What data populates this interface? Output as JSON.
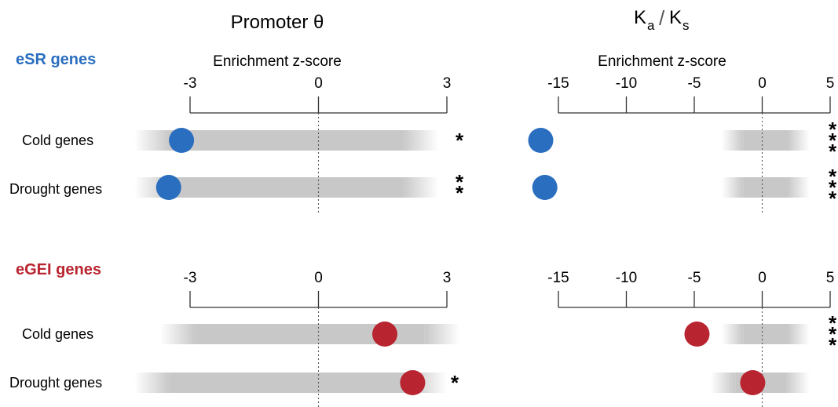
{
  "figure": {
    "col_titles": {
      "promoter": "Promoter θ",
      "kaks_main_a": "K",
      "kaks_sub_a": "a",
      "kaks_slash": "/",
      "kaks_main_s": "K",
      "kaks_sub_s": "s"
    },
    "groups": [
      {
        "label": "eSR genes",
        "color": "#2a6ebf"
      },
      {
        "label": "eGEI genes",
        "color": "#b8242f"
      }
    ],
    "row_labels": [
      "Cold genes",
      "Drought genes"
    ],
    "axis_label": "Enrichment z-score",
    "bg_bar_color": "#c8c8c8"
  },
  "chart_data": [
    {
      "type": "scatter",
      "panel": "eSR genes — Promoter θ",
      "xlabel": "Enrichment z-score",
      "xlim": [
        -3,
        3
      ],
      "ticks": [
        -3,
        0,
        3
      ],
      "categories": [
        "Cold genes",
        "Drought genes"
      ],
      "values": [
        -3.2,
        -3.5
      ],
      "null_range": [
        [
          -4.3,
          2.8
        ],
        [
          -4.3,
          2.8
        ]
      ],
      "significance": [
        "*",
        "**"
      ]
    },
    {
      "type": "scatter",
      "panel": "eSR genes — Ka/Ks",
      "xlabel": "Enrichment z-score",
      "xlim": [
        -15,
        5
      ],
      "ticks": [
        -15,
        -10,
        -5,
        0,
        5
      ],
      "categories": [
        "Cold genes",
        "Drought genes"
      ],
      "values": [
        -16.3,
        -16.0
      ],
      "null_range": [
        [
          -3,
          3.5
        ],
        [
          -3,
          3.5
        ]
      ],
      "significance": [
        "***",
        "***"
      ]
    },
    {
      "type": "scatter",
      "panel": "eGEI genes — Promoter θ",
      "xlabel": "Enrichment z-score",
      "xlim": [
        -3,
        3
      ],
      "ticks": [
        -3,
        0,
        3
      ],
      "categories": [
        "Cold genes",
        "Drought genes"
      ],
      "values": [
        1.55,
        2.2
      ],
      "null_range": [
        [
          -3.7,
          3.3
        ],
        [
          -4.3,
          3.0
        ]
      ],
      "significance": [
        "",
        "*"
      ]
    },
    {
      "type": "scatter",
      "panel": "eGEI genes — Ka/Ks",
      "xlabel": "Enrichment z-score",
      "xlim": [
        -15,
        5
      ],
      "ticks": [
        -15,
        -10,
        -5,
        0,
        5
      ],
      "categories": [
        "Cold genes",
        "Drought genes"
      ],
      "values": [
        -4.8,
        -0.7
      ],
      "null_range": [
        [
          -3,
          3.5
        ],
        [
          -3.8,
          3.5
        ]
      ],
      "significance": [
        "***",
        ""
      ]
    }
  ]
}
